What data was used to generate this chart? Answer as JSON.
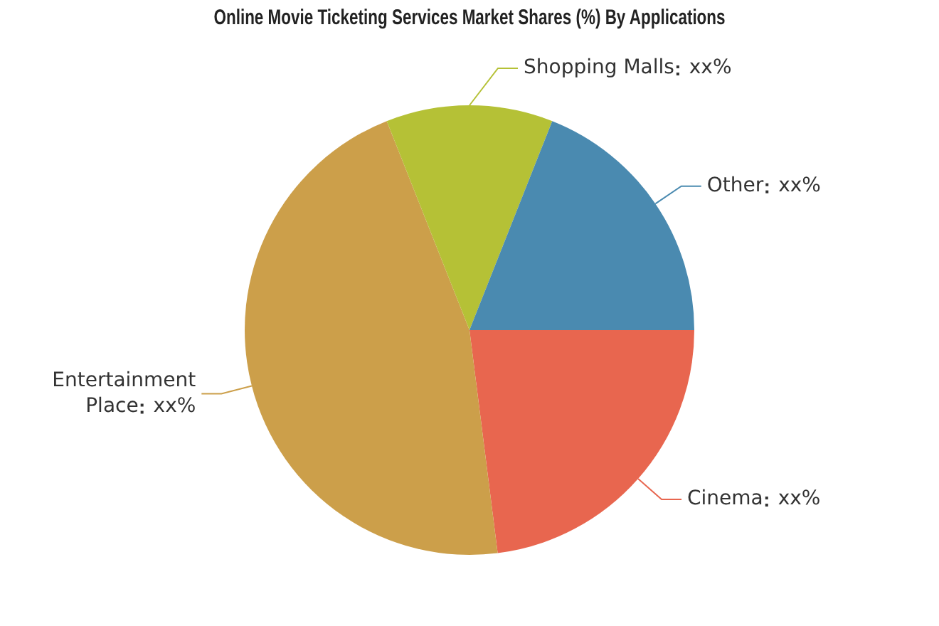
{
  "chart_data": {
    "type": "pie",
    "title": "Online Movie Ticketing Services Market Shares (%) By Applications",
    "categories": [
      "Cinema",
      "Entertainment Place",
      "Shopping Malls",
      "Other"
    ],
    "values": [
      23,
      46,
      12,
      19
    ],
    "value_labels": [
      "xx%",
      "xx%",
      "xx%",
      "xx%"
    ],
    "colors": [
      "#e8664f",
      "#cc9f4a",
      "#b5c136",
      "#4a8ab0"
    ],
    "legend": false
  }
}
